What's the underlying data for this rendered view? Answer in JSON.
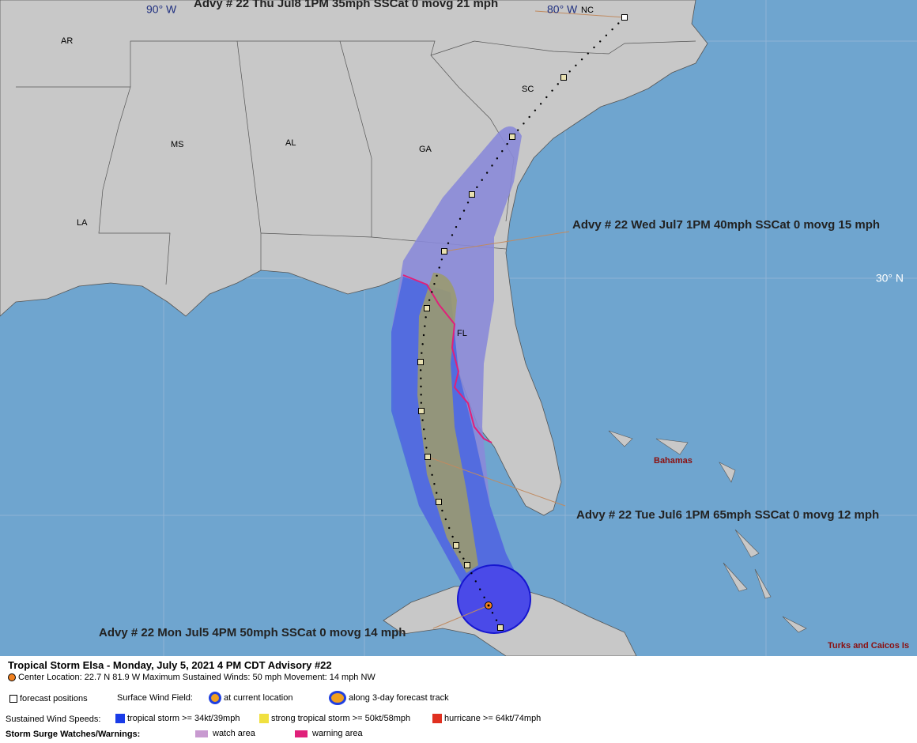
{
  "map_labels": {
    "lon_90": "90° W",
    "lon_80": "80° W",
    "lat_30": "30° N",
    "states": [
      "AR",
      "MS",
      "AL",
      "GA",
      "SC",
      "NC",
      "LA",
      "FL"
    ],
    "bahamas": "Bahamas",
    "turks": "Turks and Caicos Is"
  },
  "advisories": [
    "Advy # 22 Thu Jul8 1PM  35mph SSCat 0 movg 21 mph",
    "Advy # 22 Wed Jul7 1PM  40mph SSCat 0 movg 15 mph",
    "Advy # 22 Tue Jul6 1PM  65mph SSCat 0 movg 12 mph",
    "Advy # 22 Mon Jul5 4PM  50mph SSCat 0 movg 14 mph"
  ],
  "legend": {
    "title": "Tropical Storm Elsa  -  Monday, July 5, 2021  4 PM CDT   Advisory #22",
    "info": "Center Location: 22.7 N  81.9 W   Maximum Sustained Winds: 50 mph   Movement: 14 mph NW",
    "forecast_positions": "forecast positions",
    "wind_field": "Surface Wind Field:",
    "current": "at current location",
    "track": "along 3-day forecast track",
    "speeds": "Sustained Wind Speeds:",
    "ts": "tropical storm >= 34kt/39mph",
    "sts": "strong tropical storm >= 50kt/58mph",
    "hu": "hurricane >= 64kt/74mph",
    "surge": "Storm Surge Watches/Warnings:",
    "watch": "watch area",
    "warning": "warning area"
  }
}
